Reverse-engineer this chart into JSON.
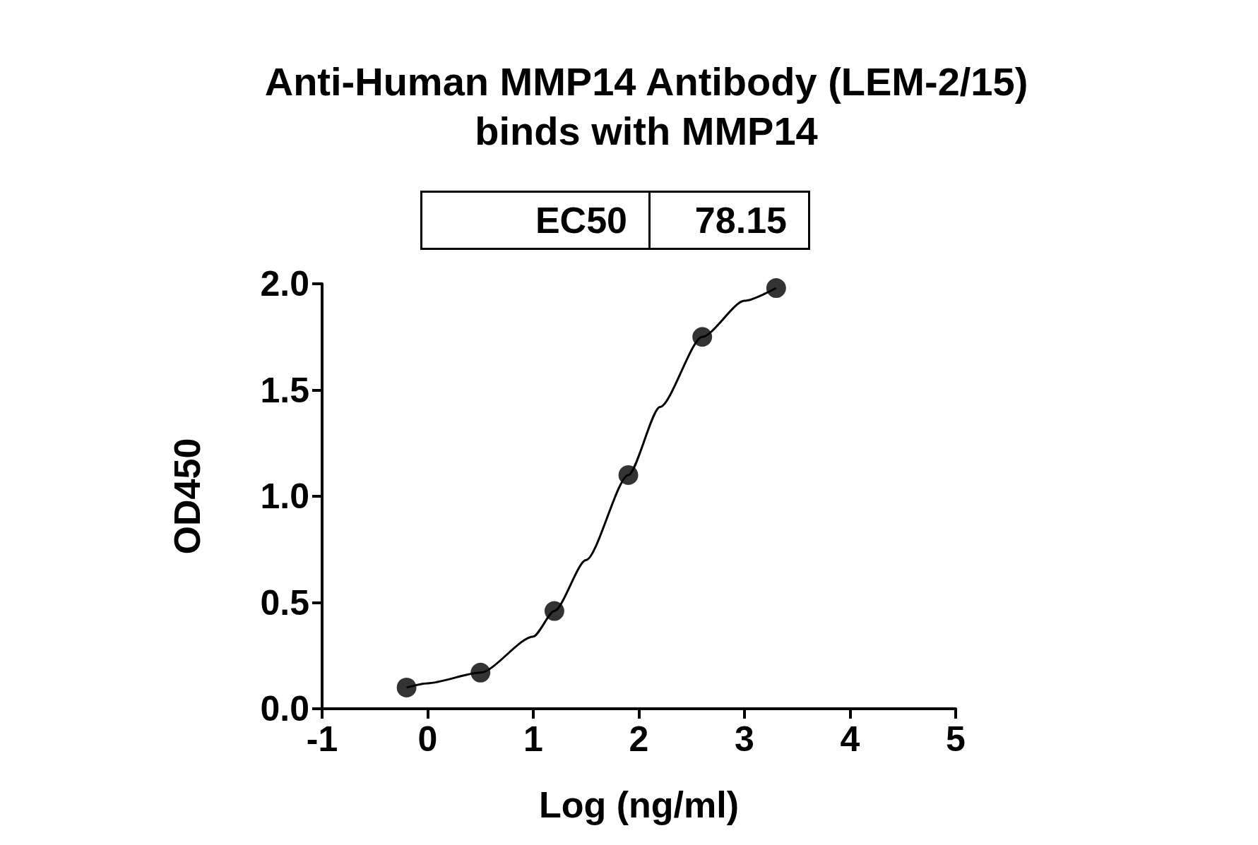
{
  "chart_data": {
    "type": "scatter",
    "title": "Anti-Human MMP14 Antibody (LEM-2/15)\nbinds with MMP14",
    "xlabel": "Log (ng/ml)",
    "ylabel": "OD450",
    "annotations": [
      "EC50",
      "78.15"
    ],
    "series": [
      {
        "color": "#000000",
        "marker": "circle",
        "x": [
          -0.2,
          0.5,
          1.2,
          1.9,
          2.6,
          3.3
        ],
        "values": [
          0.1,
          0.17,
          0.46,
          1.1,
          1.75,
          1.98
        ]
      },
      {
        "type": "line",
        "color": "#000000",
        "marker": "none",
        "line_style": "solid",
        "x": [
          -0.2,
          0,
          0.5,
          1.0,
          1.2,
          1.5,
          1.9,
          2.2,
          2.6,
          3.0,
          3.3
        ],
        "values": [
          0.1,
          0.12,
          0.17,
          0.34,
          0.46,
          0.7,
          1.1,
          1.42,
          1.75,
          1.92,
          1.98
        ]
      }
    ],
    "xlim": [
      -1,
      5
    ],
    "xticks": [
      -1,
      0,
      1,
      2,
      3,
      4,
      5
    ],
    "ylim": [
      0,
      2
    ],
    "yticks": [
      {
        "value": 0,
        "label": "0.0"
      },
      {
        "value": 0.5,
        "label": "0.5"
      },
      {
        "value": 1,
        "label": "1.0"
      },
      {
        "value": 1.5,
        "label": "1.5"
      },
      {
        "value": 2,
        "label": "2.0"
      }
    ],
    "grid": false
  }
}
